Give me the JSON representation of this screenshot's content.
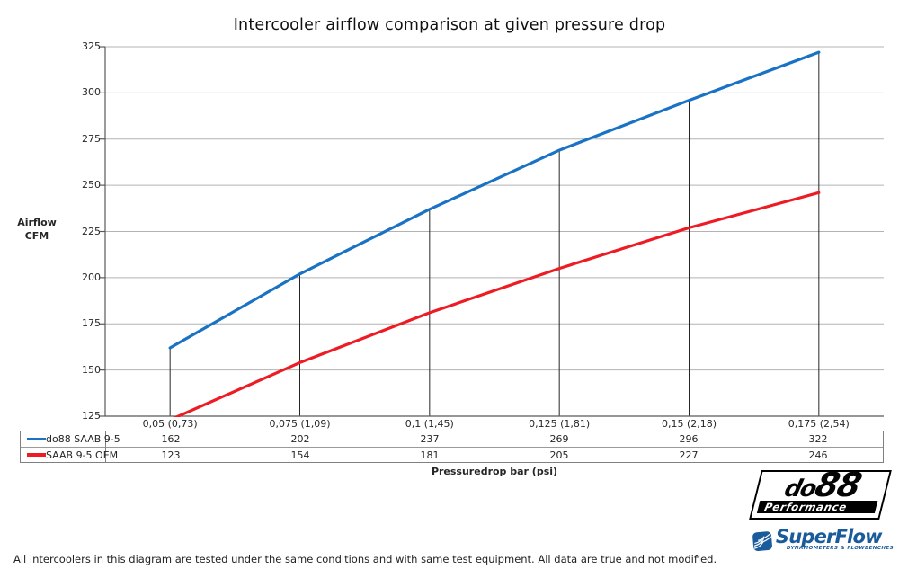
{
  "chart_data": {
    "type": "line",
    "title": "Intercooler airflow comparison at given pressure drop",
    "categories": [
      "0,05 (0,73)",
      "0,075 (1,09)",
      "0,1 (1,45)",
      "0,125 (1,81)",
      "0,15 (2,18)",
      "0,175 (2,54)"
    ],
    "series": [
      {
        "name": "do88 SAAB 9-5",
        "color": "#1a72c4",
        "values": [
          162,
          202,
          237,
          269,
          296,
          322
        ]
      },
      {
        "name": "SAAB 9-5 OEM",
        "color": "#ed1c24",
        "values": [
          123,
          154,
          181,
          205,
          227,
          246
        ]
      }
    ],
    "xlabel": "Pressuredrop bar (psi)",
    "ylabel_lines": [
      "Airflow",
      "CFM"
    ],
    "ylim": [
      125,
      325
    ],
    "ytick_step": 25,
    "grid": true,
    "drop_lines": true,
    "legend_position": "table-left",
    "gridline_color": "#b3b3b3",
    "axis_color": "#595959"
  },
  "footer": {
    "text": "All intercoolers in this diagram are tested under the same conditions and with same test equipment. All data are true and not modified."
  },
  "logos": {
    "do88": {
      "name_part1": "do",
      "name_part2": "88",
      "subtext": "Performance",
      "color": "#000000"
    },
    "superflow": {
      "name": "SuperFlow",
      "tagline": "DYNAMOMETERS & FLOWBENCHES",
      "brand_blue": "#1a5b9b"
    }
  }
}
